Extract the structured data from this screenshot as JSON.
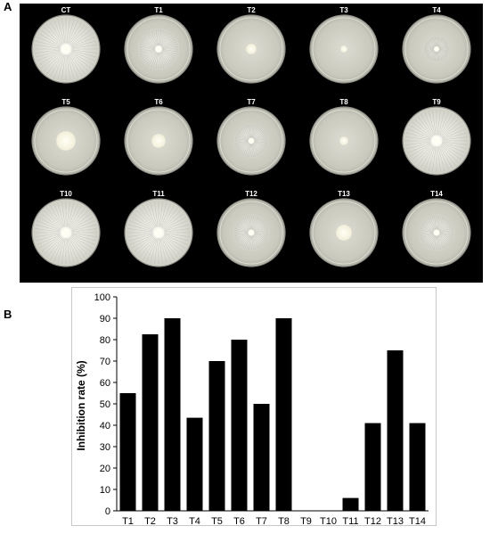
{
  "panels": {
    "a": "A",
    "b": "B"
  },
  "plates": {
    "labels": [
      "CT",
      "T1",
      "T2",
      "T3",
      "T4",
      "T5",
      "T6",
      "T7",
      "T8",
      "T9",
      "T10",
      "T11",
      "T12",
      "T13",
      "T14"
    ]
  },
  "chart_data": {
    "type": "bar",
    "title": "",
    "xlabel": "",
    "ylabel": "Inhibition rate (%)",
    "ylim": [
      0,
      100
    ],
    "yticks": [
      0,
      10,
      20,
      30,
      40,
      50,
      60,
      70,
      80,
      90,
      100
    ],
    "categories": [
      "T1",
      "T2",
      "T3",
      "T4",
      "T5",
      "T6",
      "T7",
      "T8",
      "T9",
      "T10",
      "T11",
      "T12",
      "T13",
      "T14"
    ],
    "values": [
      55,
      82.5,
      90,
      43.5,
      70,
      80,
      50,
      90,
      0,
      0,
      6,
      41,
      75,
      41
    ],
    "grid": false,
    "colors": {
      "bar": "#000000"
    }
  }
}
